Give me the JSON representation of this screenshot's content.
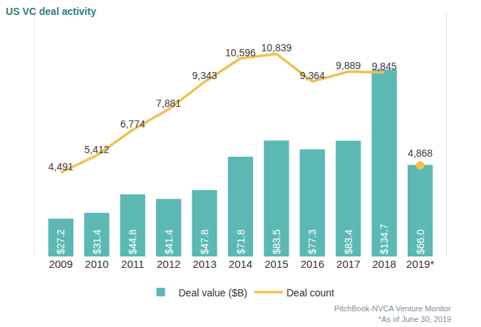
{
  "chart_data": {
    "type": "bar",
    "title": "US VC deal activity",
    "categories": [
      "2009",
      "2010",
      "2011",
      "2012",
      "2013",
      "2014",
      "2015",
      "2016",
      "2017",
      "2018",
      "2019*"
    ],
    "series": [
      {
        "name": "Deal value ($B)",
        "type": "bar",
        "axis": "y",
        "color": "#5bb8b3",
        "values": [
          27.2,
          31.4,
          44.8,
          41.4,
          47.8,
          71.8,
          83.5,
          77.3,
          83.4,
          134.7,
          66.0
        ],
        "value_labels": [
          "$27.2",
          "$31.4",
          "$44.8",
          "$41.4",
          "$47.8",
          "$71.8",
          "$83.5",
          "$77.3",
          "$83.4",
          "$134.7",
          "$66.0"
        ]
      },
      {
        "name": "Deal count",
        "type": "line",
        "axis": "y2",
        "color": "#f5be4f",
        "values": [
          4491,
          5412,
          6774,
          7881,
          9343,
          10596,
          10839,
          9364,
          9889,
          9845,
          null
        ],
        "value_labels": [
          "4,491",
          "5,412",
          "6,774",
          "7,881",
          "9,343",
          "10,596",
          "10,839",
          "9,364",
          "9,889",
          "9,845",
          null
        ]
      },
      {
        "type": "scatter",
        "axis": "y2",
        "color": "#f5be4f",
        "values": [
          null,
          null,
          null,
          null,
          null,
          null,
          null,
          null,
          null,
          null,
          4868
        ],
        "value_labels": [
          null,
          null,
          null,
          null,
          null,
          null,
          null,
          null,
          null,
          null,
          "4,868"
        ]
      }
    ],
    "ylim": [
      0,
      175
    ],
    "y2lim": [
      0,
      13000
    ],
    "grid": false,
    "data_labels": true,
    "tick_labels": "x",
    "legend": "bottom",
    "annotations": [
      "PitchBook-NVCA Venture Monitor",
      "*As of June 30, 2019"
    ]
  }
}
